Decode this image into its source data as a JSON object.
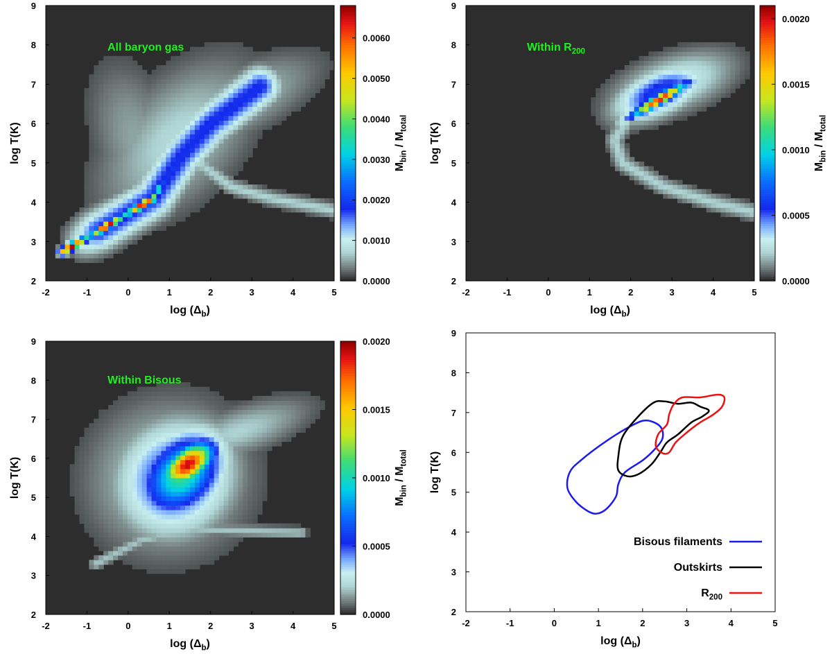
{
  "chart_data": [
    {
      "type": "heatmap",
      "panel": "top-left",
      "annotation": "All baryon gas",
      "xlabel_main": "log (Δ",
      "xlabel_sub": "b",
      "xlabel_close": ")",
      "ylabel": "log T(K)",
      "xlim": [
        -2,
        5
      ],
      "ylim": [
        2,
        9
      ],
      "xticks": [
        "-2",
        "-1",
        "0",
        "1",
        "2",
        "3",
        "4",
        "5"
      ],
      "yticks": [
        "2",
        "3",
        "4",
        "5",
        "6",
        "7",
        "8",
        "9"
      ],
      "colorbar": {
        "label_main": "M",
        "label_sub1": "bin",
        "label_mid": " / M",
        "label_sub2": "total",
        "range": [
          0,
          0.0068
        ],
        "ticks": [
          "0.0000",
          "0.0010",
          "0.0020",
          "0.0030",
          "0.0040",
          "0.0050",
          "0.0060"
        ],
        "tick_values": [
          0,
          0.001,
          0.002,
          0.003,
          0.004,
          0.005,
          0.006
        ]
      },
      "ridge": [
        [
          -1.6,
          2.75
        ],
        [
          -1.0,
          3.1
        ],
        [
          -0.2,
          3.6
        ],
        [
          0.6,
          4.1
        ],
        [
          1.3,
          5.2
        ],
        [
          2.0,
          6.0
        ],
        [
          3.2,
          6.95
        ]
      ],
      "peak": 0.0065
    },
    {
      "type": "heatmap",
      "panel": "top-right",
      "annotation_main": "Within R",
      "annotation_sub": "200",
      "xlabel_main": "log (Δ",
      "xlabel_sub": "b",
      "xlabel_close": ")",
      "ylabel": "log T(K)",
      "xlim": [
        -2,
        5
      ],
      "ylim": [
        2,
        9
      ],
      "xticks": [
        "-2",
        "-1",
        "0",
        "1",
        "2",
        "3",
        "4",
        "5"
      ],
      "yticks": [
        "2",
        "3",
        "4",
        "5",
        "6",
        "7",
        "8",
        "9"
      ],
      "colorbar": {
        "label_main": "M",
        "label_sub1": "bin",
        "label_mid": " / M",
        "label_sub2": "total",
        "range": [
          0,
          0.0021
        ],
        "ticks": [
          "0.0000",
          "0.0005",
          "0.0010",
          "0.0015",
          "0.0020"
        ],
        "tick_values": [
          0,
          0.0005,
          0.001,
          0.0015,
          0.002
        ]
      },
      "peak": 0.002
    },
    {
      "type": "heatmap",
      "panel": "bottom-left",
      "annotation": "Within Bisous",
      "xlabel_main": "log (Δ",
      "xlabel_sub": "b",
      "xlabel_close": ")",
      "ylabel": "log T(K)",
      "xlim": [
        -2,
        5
      ],
      "ylim": [
        2,
        9
      ],
      "xticks": [
        "-2",
        "-1",
        "0",
        "1",
        "2",
        "3",
        "4",
        "5"
      ],
      "yticks": [
        "2",
        "3",
        "4",
        "5",
        "6",
        "7",
        "8",
        "9"
      ],
      "colorbar": {
        "label_main": "M",
        "label_sub1": "bin",
        "label_mid": " / M",
        "label_sub2": "total",
        "range": [
          0,
          0.002
        ],
        "ticks": [
          "0.0000",
          "0.0005",
          "0.0010",
          "0.0015",
          "0.0020"
        ],
        "tick_values": [
          0,
          0.0005,
          0.001,
          0.0015,
          0.002
        ]
      },
      "peak": 0.002
    },
    {
      "type": "line",
      "panel": "bottom-right",
      "xlabel_main": "log (Δ",
      "xlabel_sub": "b",
      "xlabel_close": ")",
      "ylabel": "log T(K)",
      "xlim": [
        -2,
        5
      ],
      "ylim": [
        2,
        9
      ],
      "xticks": [
        "-2",
        "-1",
        "0",
        "1",
        "2",
        "3",
        "4",
        "5"
      ],
      "yticks": [
        "2",
        "3",
        "4",
        "5",
        "6",
        "7",
        "8",
        "9"
      ],
      "legend_position": "bottom-right",
      "series": [
        {
          "name": "Bisous filaments",
          "color": "#1a1aee",
          "points": [
            [
              0.6,
              5.8
            ],
            [
              1.2,
              6.3
            ],
            [
              1.8,
              6.7
            ],
            [
              2.1,
              6.8
            ],
            [
              2.4,
              6.65
            ],
            [
              2.45,
              6.35
            ],
            [
              2.25,
              6.05
            ],
            [
              2.0,
              5.8
            ],
            [
              1.6,
              5.5
            ],
            [
              1.45,
              5.2
            ],
            [
              1.4,
              4.9
            ],
            [
              1.2,
              4.6
            ],
            [
              1.0,
              4.47
            ],
            [
              0.8,
              4.5
            ],
            [
              0.5,
              4.75
            ],
            [
              0.3,
              5.1
            ],
            [
              0.35,
              5.5
            ]
          ]
        },
        {
          "name": "Outskirts",
          "color": "#000000",
          "points": [
            [
              2.25,
              7.25
            ],
            [
              2.5,
              7.28
            ],
            [
              2.8,
              7.22
            ],
            [
              3.1,
              7.25
            ],
            [
              3.3,
              7.15
            ],
            [
              3.5,
              7.05
            ],
            [
              3.35,
              6.9
            ],
            [
              3.1,
              6.75
            ],
            [
              2.8,
              6.45
            ],
            [
              2.55,
              6.25
            ],
            [
              2.4,
              6.0
            ],
            [
              2.2,
              5.7
            ],
            [
              1.9,
              5.45
            ],
            [
              1.65,
              5.4
            ],
            [
              1.45,
              5.55
            ],
            [
              1.45,
              5.9
            ],
            [
              1.55,
              6.4
            ],
            [
              1.9,
              6.9
            ]
          ]
        },
        {
          "name": "R",
          "name_sub": "200",
          "color": "#ee1111",
          "points": [
            [
              2.9,
              7.38
            ],
            [
              3.3,
              7.38
            ],
            [
              3.7,
              7.45
            ],
            [
              3.85,
              7.38
            ],
            [
              3.8,
              7.15
            ],
            [
              3.6,
              6.95
            ],
            [
              3.3,
              6.75
            ],
            [
              3.0,
              6.5
            ],
            [
              2.75,
              6.25
            ],
            [
              2.6,
              6.0
            ],
            [
              2.45,
              5.98
            ],
            [
              2.3,
              6.15
            ],
            [
              2.35,
              6.45
            ],
            [
              2.55,
              6.7
            ],
            [
              2.6,
              6.95
            ],
            [
              2.7,
              7.2
            ]
          ]
        }
      ]
    }
  ]
}
